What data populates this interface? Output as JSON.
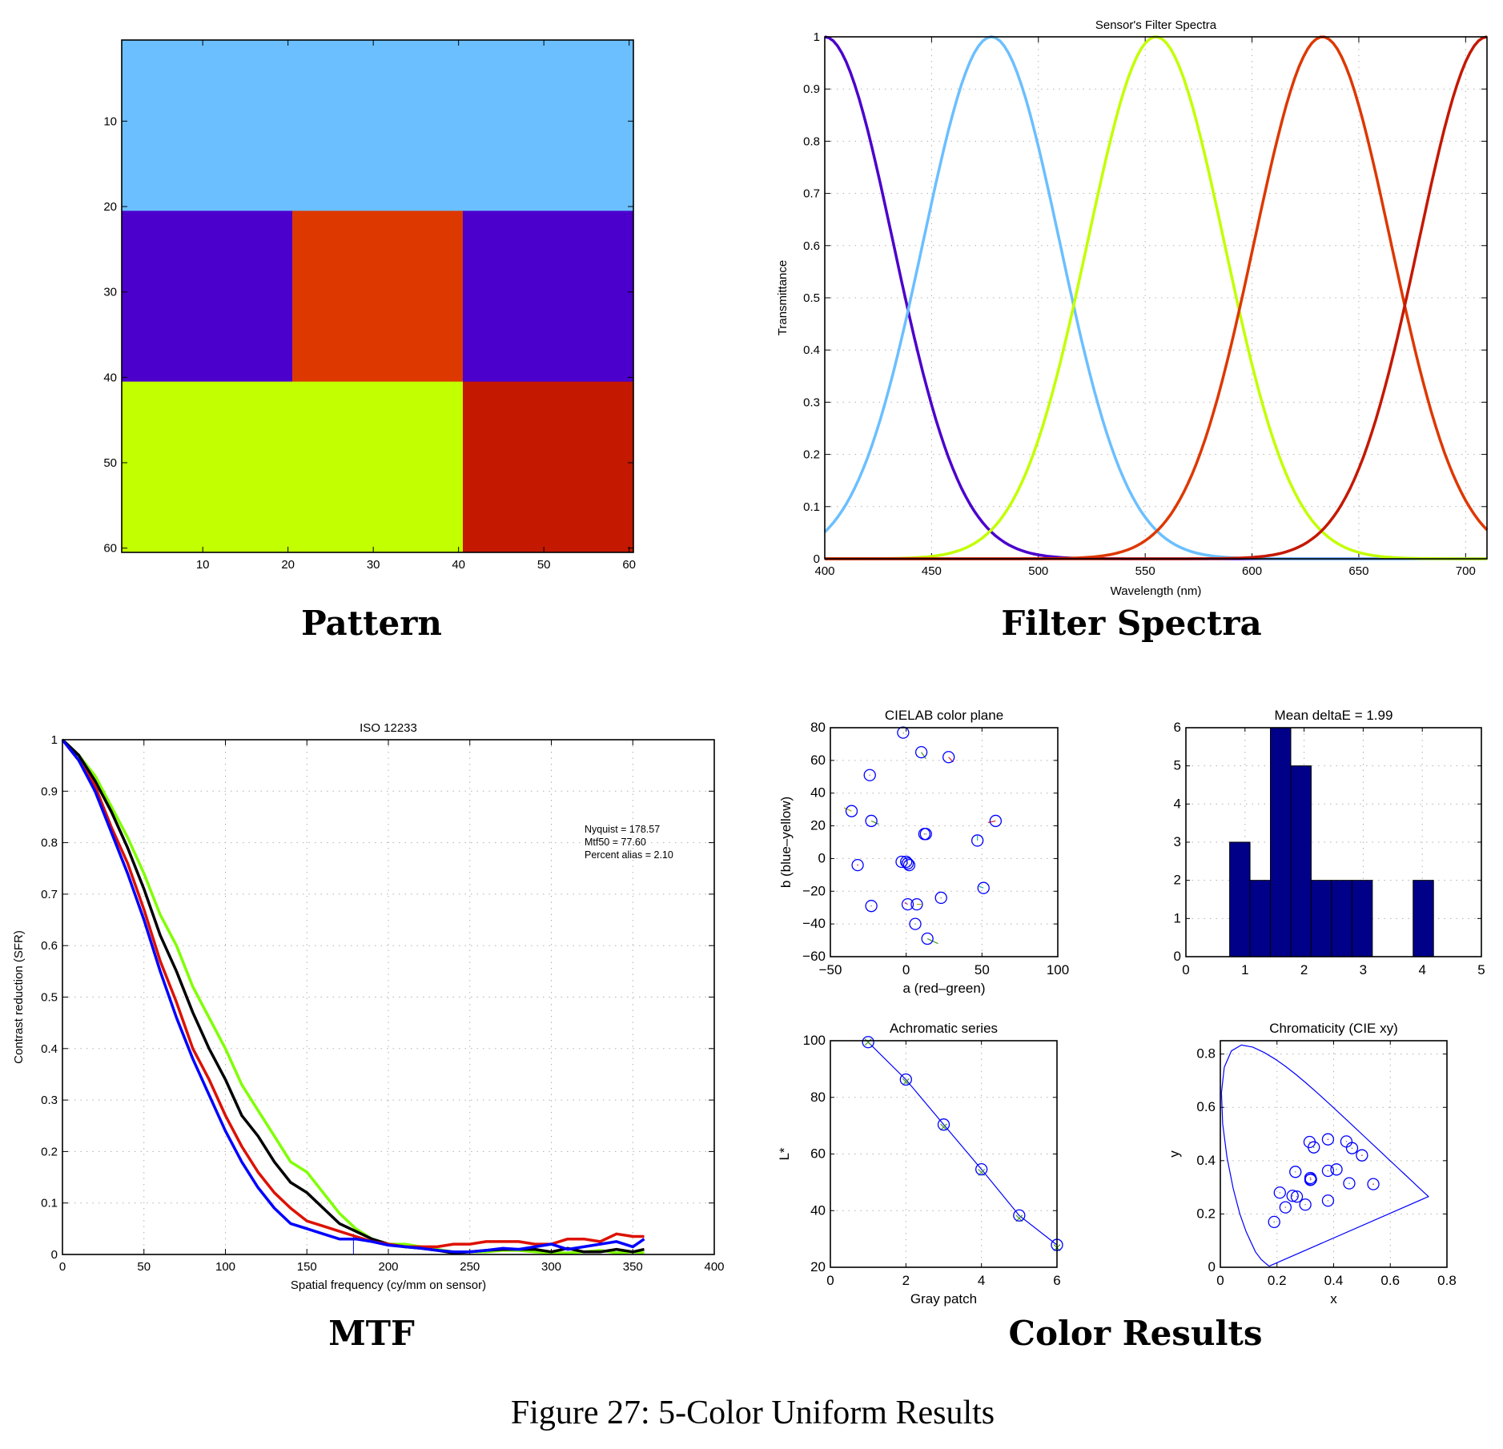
{
  "figure_caption": "Figure 27: 5-Color Uniform Results",
  "panel_captions": {
    "pattern": "Pattern",
    "filter_spectra": "Filter Spectra",
    "mtf": "MTF",
    "color_results": "Color Results"
  },
  "colors": {
    "light_blue": "#6bbfff",
    "violet": "#4b00cc",
    "orange_red": "#dd3800",
    "yellow_green": "#c2ff00",
    "dark_red": "#c41800",
    "marker_blue": "#0000ff",
    "hist_fill": "#000088"
  },
  "chart_data": [
    {
      "id": "pattern",
      "type": "heatmap",
      "title": "",
      "xlabel": "",
      "ylabel": "",
      "xlim": [
        0.5,
        60.5
      ],
      "ylim": [
        0.5,
        60.5
      ],
      "y_reversed": true,
      "xticks": [
        10,
        20,
        30,
        40,
        50,
        60
      ],
      "yticks": [
        10,
        20,
        30,
        40,
        50,
        60
      ],
      "blocks": [
        {
          "x0": 0.5,
          "x1": 60.5,
          "y0": 0.5,
          "y1": 20.5,
          "color": "#6bbfff",
          "name": "light-blue-block"
        },
        {
          "x0": 0.5,
          "x1": 20.5,
          "y0": 20.5,
          "y1": 40.5,
          "color": "#4b00cc",
          "name": "violet-block-left"
        },
        {
          "x0": 20.5,
          "x1": 40.5,
          "y0": 20.5,
          "y1": 40.5,
          "color": "#dd3800",
          "name": "orange-block"
        },
        {
          "x0": 40.5,
          "x1": 60.5,
          "y0": 20.5,
          "y1": 40.5,
          "color": "#4b00cc",
          "name": "violet-block-right"
        },
        {
          "x0": 0.5,
          "x1": 40.5,
          "y0": 40.5,
          "y1": 60.5,
          "color": "#c2ff00",
          "name": "yellow-green-block"
        },
        {
          "x0": 40.5,
          "x1": 60.5,
          "y0": 40.5,
          "y1": 60.5,
          "color": "#c41800",
          "name": "dark-red-block"
        }
      ]
    },
    {
      "id": "filter_spectra",
      "type": "line",
      "title": "Sensor's Filter Spectra",
      "xlabel": "Wavelength (nm)",
      "ylabel": "Transmittance",
      "xlim": [
        400,
        710
      ],
      "ylim": [
        0,
        1
      ],
      "xticks": [
        400,
        450,
        500,
        550,
        600,
        650,
        700
      ],
      "yticks": [
        0,
        0.1,
        0.2,
        0.3,
        0.4,
        0.5,
        0.6,
        0.7,
        0.8,
        0.9,
        1
      ],
      "ytick_labels": [
        "0",
        "0.1",
        "0.2",
        "0.3",
        "0.4",
        "0.5",
        "0.6",
        "0.7",
        "0.8",
        "0.9",
        "1"
      ],
      "grid": true,
      "series_model": "gaussian",
      "series": [
        {
          "name": "filter-violet",
          "color": "#4b00cc",
          "peak_nm": 400,
          "sigma_nm": 32
        },
        {
          "name": "filter-light-blue",
          "color": "#6bbfff",
          "peak_nm": 478,
          "sigma_nm": 32
        },
        {
          "name": "filter-yellow-green",
          "color": "#c2ff00",
          "peak_nm": 555,
          "sigma_nm": 32
        },
        {
          "name": "filter-orange-red",
          "color": "#dd3800",
          "peak_nm": 633,
          "sigma_nm": 32
        },
        {
          "name": "filter-dark-red",
          "color": "#c41800",
          "peak_nm": 710,
          "sigma_nm": 32
        }
      ]
    },
    {
      "id": "mtf",
      "type": "line",
      "title": "ISO 12233",
      "xlabel": "Spatial frequency (cy/mm on sensor)",
      "ylabel": "Contrast reduction (SFR)",
      "xlim": [
        0,
        400
      ],
      "ylim": [
        0,
        1
      ],
      "xticks": [
        0,
        50,
        100,
        150,
        200,
        250,
        300,
        350,
        400
      ],
      "yticks": [
        0,
        0.1,
        0.2,
        0.3,
        0.4,
        0.5,
        0.6,
        0.7,
        0.8,
        0.9,
        1
      ],
      "ytick_labels": [
        "0",
        "0.1",
        "0.2",
        "0.3",
        "0.4",
        "0.5",
        "0.6",
        "0.7",
        "0.8",
        "0.9",
        "1"
      ],
      "grid": true,
      "annotations": [
        "Nyquist = 178.57",
        "Mtf50 = 77.60",
        "Percent alias = 2.10"
      ],
      "nyquist_marker": {
        "x": 178.57,
        "y_top": 0.04,
        "color": "#0000ff"
      },
      "x": [
        0,
        10,
        20,
        30,
        40,
        50,
        60,
        70,
        80,
        90,
        100,
        110,
        120,
        130,
        140,
        150,
        160,
        170,
        180,
        190,
        200,
        210,
        220,
        230,
        240,
        250,
        260,
        270,
        280,
        290,
        300,
        310,
        320,
        330,
        340,
        350,
        357
      ],
      "series": [
        {
          "name": "mtf-green",
          "color": "#7fff00",
          "values": [
            1.0,
            0.97,
            0.93,
            0.87,
            0.81,
            0.74,
            0.66,
            0.6,
            0.52,
            0.46,
            0.4,
            0.33,
            0.28,
            0.23,
            0.18,
            0.16,
            0.12,
            0.08,
            0.05,
            0.03,
            0.02,
            0.02,
            0.015,
            0.01,
            0.005,
            0.005,
            0.005,
            0.008,
            0.008,
            0.005,
            0.003,
            0.003,
            0.005,
            0.008,
            0.003,
            0.005,
            0.003
          ]
        },
        {
          "name": "mtf-black",
          "color": "#000000",
          "values": [
            1.0,
            0.97,
            0.92,
            0.86,
            0.79,
            0.71,
            0.62,
            0.55,
            0.47,
            0.4,
            0.34,
            0.27,
            0.23,
            0.18,
            0.14,
            0.12,
            0.09,
            0.06,
            0.045,
            0.03,
            0.02,
            0.015,
            0.012,
            0.008,
            0.003,
            0.005,
            0.008,
            0.01,
            0.01,
            0.01,
            0.005,
            0.012,
            0.005,
            0.005,
            0.01,
            0.005,
            0.01
          ]
        },
        {
          "name": "mtf-red",
          "color": "#dd1100",
          "values": [
            1.0,
            0.96,
            0.91,
            0.83,
            0.76,
            0.67,
            0.57,
            0.49,
            0.4,
            0.34,
            0.27,
            0.21,
            0.16,
            0.12,
            0.09,
            0.065,
            0.055,
            0.045,
            0.035,
            0.025,
            0.02,
            0.015,
            0.015,
            0.015,
            0.02,
            0.02,
            0.025,
            0.025,
            0.025,
            0.02,
            0.02,
            0.03,
            0.03,
            0.025,
            0.04,
            0.035,
            0.035
          ]
        },
        {
          "name": "mtf-blue",
          "color": "#0000ff",
          "values": [
            1.0,
            0.96,
            0.9,
            0.82,
            0.74,
            0.65,
            0.55,
            0.46,
            0.38,
            0.31,
            0.24,
            0.18,
            0.13,
            0.09,
            0.06,
            0.05,
            0.04,
            0.03,
            0.03,
            0.025,
            0.018,
            0.015,
            0.012,
            0.008,
            0.005,
            0.005,
            0.008,
            0.012,
            0.01,
            0.015,
            0.02,
            0.01,
            0.015,
            0.02,
            0.025,
            0.015,
            0.03
          ]
        }
      ]
    },
    {
      "id": "cielab",
      "type": "scatter",
      "title": "CIELAB color plane",
      "xlabel": "a (red–green)",
      "ylabel": "b (blue–yellow)",
      "xlim": [
        -50,
        100
      ],
      "ylim": [
        -60,
        80
      ],
      "xticks": [
        -50,
        0,
        50,
        100
      ],
      "xtick_labels": [
        "−50",
        "0",
        "50",
        "100"
      ],
      "yticks": [
        -60,
        -40,
        -20,
        0,
        20,
        40,
        60,
        80
      ],
      "ytick_labels": [
        "−60",
        "−40",
        "−20",
        "0",
        "20",
        "40",
        "60",
        "80"
      ],
      "grid_x": [
        0,
        50
      ],
      "grid_y": [
        -40,
        -20,
        0,
        20,
        40,
        60
      ],
      "points": [
        {
          "a": -2,
          "b": 77,
          "da": 0.5,
          "db": -0.5,
          "err_color": "#888888"
        },
        {
          "a": 10,
          "b": 65,
          "da": 3,
          "db": -4,
          "err_color": "#4a9a2a"
        },
        {
          "a": 28,
          "b": 62,
          "da": 3,
          "db": -3,
          "err_color": "#dd2222"
        },
        {
          "a": -24,
          "b": 51,
          "da": 0,
          "db": 0,
          "err_color": "#888888"
        },
        {
          "a": -36,
          "b": 29,
          "da": -5,
          "db": 2,
          "err_color": "#aaaa00"
        },
        {
          "a": -23,
          "b": 23,
          "da": 5,
          "db": -2,
          "err_color": "#4a9a2a"
        },
        {
          "a": 12,
          "b": 15,
          "da": 0,
          "db": 0,
          "err_color": "#888888"
        },
        {
          "a": 13,
          "b": 15,
          "da": 0,
          "db": 0,
          "err_color": "#888888"
        },
        {
          "a": 59,
          "b": 23,
          "da": -5,
          "db": -1,
          "err_color": "#dd2222"
        },
        {
          "a": 47,
          "b": 11,
          "da": 0,
          "db": 3,
          "err_color": "#22aaaa"
        },
        {
          "a": -32,
          "b": -4,
          "da": 0,
          "db": 0,
          "err_color": "#dd2222"
        },
        {
          "a": -3,
          "b": -2,
          "da": 0,
          "db": 0,
          "err_color": "#888888"
        },
        {
          "a": 0,
          "b": -2,
          "da": 0,
          "db": 0,
          "err_color": "#888888"
        },
        {
          "a": 1,
          "b": -3,
          "da": 0,
          "db": 0,
          "err_color": "#888888"
        },
        {
          "a": 2,
          "b": -4,
          "da": 0,
          "db": 0,
          "err_color": "#888888"
        },
        {
          "a": 51,
          "b": -18,
          "da": -3,
          "db": 1,
          "err_color": "#22aaaa"
        },
        {
          "a": 23,
          "b": -24,
          "da": 0,
          "db": 0,
          "err_color": "#888888"
        },
        {
          "a": -23,
          "b": -29,
          "da": 0,
          "db": 0,
          "err_color": "#888888"
        },
        {
          "a": 1,
          "b": -28,
          "da": -2,
          "db": 1,
          "err_color": "#aa22aa"
        },
        {
          "a": 7,
          "b": -28,
          "da": 3,
          "db": 0,
          "err_color": "#aaaa00"
        },
        {
          "a": 6,
          "b": -40,
          "da": 0,
          "db": 0,
          "err_color": "#888888"
        },
        {
          "a": 14,
          "b": -49,
          "da": 7,
          "db": -3,
          "err_color": "#4a9a2a"
        }
      ]
    },
    {
      "id": "delta_e_histogram",
      "type": "bar",
      "title": "Mean deltaE = 1.99",
      "xlabel": "",
      "ylabel": "",
      "xlim": [
        0,
        5
      ],
      "ylim": [
        0,
        6
      ],
      "xticks": [
        0,
        1,
        2,
        3,
        4,
        5
      ],
      "yticks": [
        0,
        1,
        2,
        3,
        4,
        5,
        6
      ],
      "grid": true,
      "bin_edges": [
        0.74,
        1.085,
        1.43,
        1.775,
        2.12,
        2.465,
        2.81,
        3.155,
        3.5,
        3.845,
        4.19
      ],
      "values": [
        3,
        2,
        6,
        5,
        2,
        2,
        2,
        0,
        0,
        2
      ]
    },
    {
      "id": "achromatic",
      "type": "line",
      "title": "Achromatic series",
      "xlabel": "Gray patch",
      "ylabel": "L*",
      "xlim": [
        0,
        6
      ],
      "ylim": [
        20,
        100
      ],
      "xticks": [
        0,
        2,
        4,
        6
      ],
      "yticks": [
        20,
        40,
        60,
        80,
        100
      ],
      "grid_x": [
        2,
        4
      ],
      "grid_y": [
        40,
        60,
        80
      ],
      "x": [
        1,
        2,
        3,
        4,
        5,
        6
      ],
      "series": [
        {
          "name": "measured",
          "color": "#0000ff",
          "marker": "circle",
          "values": [
            99.5,
            86.3,
            70.4,
            54.6,
            38.3,
            27.9
          ]
        },
        {
          "name": "estimated",
          "color": "#4a9a2a",
          "marker": "x",
          "values": [
            99.5,
            85.5,
            69.5,
            53.5,
            37.3,
            26.9
          ]
        }
      ]
    },
    {
      "id": "chromaticity",
      "type": "scatter",
      "title": "Chromaticity (CIE xy)",
      "xlabel": "x",
      "ylabel": "y",
      "xlim": [
        0,
        0.8
      ],
      "ylim": [
        0,
        0.85
      ],
      "xticks": [
        0,
        0.2,
        0.4,
        0.6,
        0.8
      ],
      "yticks": [
        0,
        0.2,
        0.4,
        0.6,
        0.8
      ],
      "grid_x": [
        0.2,
        0.4,
        0.6
      ],
      "grid_y": [
        0.2,
        0.4,
        0.6,
        0.8
      ],
      "locus": [
        [
          0.1741,
          0.005
        ],
        [
          0.1738,
          0.0049
        ],
        [
          0.1703,
          0.0058
        ],
        [
          0.1666,
          0.0089
        ],
        [
          0.1566,
          0.0177
        ],
        [
          0.144,
          0.0297
        ],
        [
          0.1241,
          0.0578
        ],
        [
          0.0913,
          0.1327
        ],
        [
          0.0687,
          0.2007
        ],
        [
          0.0454,
          0.295
        ],
        [
          0.0235,
          0.4127
        ],
        [
          0.0082,
          0.5384
        ],
        [
          0.0039,
          0.6548
        ],
        [
          0.0139,
          0.7502
        ],
        [
          0.0389,
          0.812
        ],
        [
          0.0743,
          0.8338
        ],
        [
          0.1142,
          0.8262
        ],
        [
          0.1547,
          0.8059
        ],
        [
          0.1929,
          0.7816
        ],
        [
          0.2296,
          0.7543
        ],
        [
          0.2658,
          0.7243
        ],
        [
          0.3016,
          0.6923
        ],
        [
          0.3373,
          0.6589
        ],
        [
          0.3731,
          0.6245
        ],
        [
          0.4087,
          0.5896
        ],
        [
          0.4441,
          0.5547
        ],
        [
          0.4788,
          0.5202
        ],
        [
          0.5125,
          0.4866
        ],
        [
          0.5448,
          0.4544
        ],
        [
          0.5752,
          0.4242
        ],
        [
          0.6029,
          0.3965
        ],
        [
          0.627,
          0.3725
        ],
        [
          0.6482,
          0.3514
        ],
        [
          0.6658,
          0.334
        ],
        [
          0.6801,
          0.3197
        ],
        [
          0.6915,
          0.3083
        ],
        [
          0.7006,
          0.2993
        ],
        [
          0.7079,
          0.292
        ],
        [
          0.714,
          0.2859
        ],
        [
          0.719,
          0.2809
        ],
        [
          0.723,
          0.277
        ],
        [
          0.726,
          0.274
        ],
        [
          0.7283,
          0.2717
        ],
        [
          0.73,
          0.27
        ],
        [
          0.7347,
          0.2653
        ],
        [
          0.1741,
          0.005
        ]
      ],
      "points": [
        {
          "x": 0.19,
          "y": 0.17,
          "err_color": "#4a9a2a"
        },
        {
          "x": 0.21,
          "y": 0.28,
          "err_color": "#888888"
        },
        {
          "x": 0.23,
          "y": 0.225,
          "err_color": "#888888"
        },
        {
          "x": 0.255,
          "y": 0.268,
          "err_color": "#888888"
        },
        {
          "x": 0.27,
          "y": 0.265,
          "err_color": "#888888"
        },
        {
          "x": 0.265,
          "y": 0.358,
          "err_color": "#888888"
        },
        {
          "x": 0.3,
          "y": 0.235,
          "err_color": "#888888"
        },
        {
          "x": 0.315,
          "y": 0.47,
          "err_color": "#aaaa00"
        },
        {
          "x": 0.33,
          "y": 0.45,
          "err_color": "#4a9a2a"
        },
        {
          "x": 0.318,
          "y": 0.335,
          "err_color": "#dd2222"
        },
        {
          "x": 0.32,
          "y": 0.33,
          "err_color": "#888888"
        },
        {
          "x": 0.318,
          "y": 0.328,
          "err_color": "#888888"
        },
        {
          "x": 0.38,
          "y": 0.48,
          "err_color": "#aa22aa"
        },
        {
          "x": 0.38,
          "y": 0.362,
          "err_color": "#888888"
        },
        {
          "x": 0.41,
          "y": 0.367,
          "err_color": "#22aaaa"
        },
        {
          "x": 0.38,
          "y": 0.25,
          "err_color": "#888888"
        },
        {
          "x": 0.445,
          "y": 0.472,
          "err_color": "#888888"
        },
        {
          "x": 0.465,
          "y": 0.447,
          "err_color": "#4a9a2a"
        },
        {
          "x": 0.5,
          "y": 0.42,
          "err_color": "#dd2222"
        },
        {
          "x": 0.455,
          "y": 0.315,
          "err_color": "#22aaaa"
        },
        {
          "x": 0.54,
          "y": 0.312,
          "err_color": "#dd2222"
        }
      ]
    }
  ]
}
